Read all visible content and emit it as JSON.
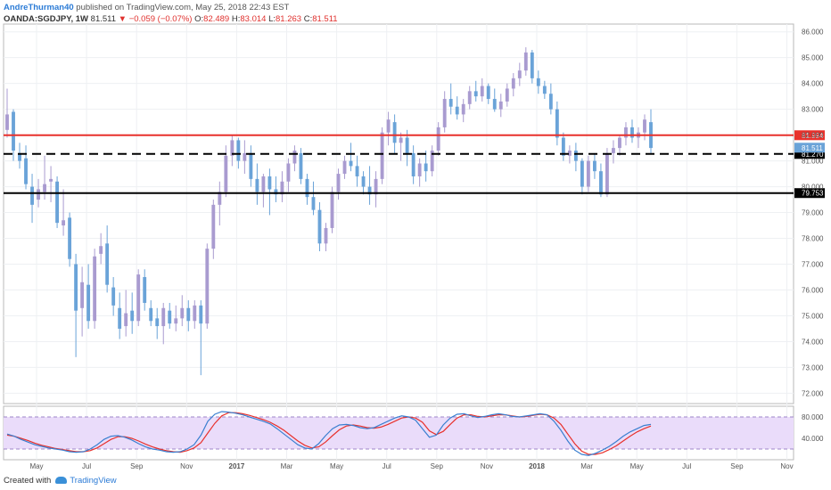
{
  "header": {
    "author": "AndreThurman40",
    "published_text": "published on TradingView.com, May 25, 2018 22:43 EST",
    "symbol": "OANDA:SGDJPY, 1W",
    "last": "81.511",
    "change": "−0.059 (−0.07%)",
    "open_label": "O:",
    "open": "82.489",
    "high_label": "H:",
    "high": "83.014",
    "low_label": "L:",
    "low": "81.263",
    "close_label": "C:",
    "close": "81.511"
  },
  "footer": {
    "created_with": "Created with",
    "brand": "TradingView"
  },
  "colors": {
    "up": "#a99bd0",
    "down": "#6aa3d8",
    "resistance": "#e8312c",
    "support": "#000000",
    "stoch_k": "#3a7fd0",
    "stoch_d": "#e8312c",
    "stoch_band": "#eadcfa"
  },
  "chart_data": {
    "type": "candlestick",
    "x_ticks": [
      "May",
      "Jul",
      "Sep",
      "Nov",
      "2017",
      "Mar",
      "May",
      "Jul",
      "Sep",
      "Nov",
      "2018",
      "Mar",
      "May",
      "Jul",
      "Sep",
      "Nov"
    ],
    "ylim": [
      71.6,
      86.3
    ],
    "y_ticks": [
      "86.000",
      "85.000",
      "84.000",
      "83.000",
      "82.000",
      "81.000",
      "80.000",
      "79.000",
      "78.000",
      "77.000",
      "76.000",
      "75.000",
      "74.000",
      "73.000",
      "72.000"
    ],
    "candles": [
      {
        "o": 82.2,
        "h": 83.8,
        "l": 81.9,
        "c": 82.8
      },
      {
        "o": 82.9,
        "h": 83.0,
        "l": 81.0,
        "c": 81.4
      },
      {
        "o": 81.3,
        "h": 81.7,
        "l": 80.7,
        "c": 81.0
      },
      {
        "o": 81.1,
        "h": 81.6,
        "l": 79.9,
        "c": 80.1
      },
      {
        "o": 80.0,
        "h": 80.5,
        "l": 78.6,
        "c": 79.3
      },
      {
        "o": 79.5,
        "h": 80.3,
        "l": 79.2,
        "c": 79.9
      },
      {
        "o": 79.8,
        "h": 81.2,
        "l": 79.5,
        "c": 80.1
      },
      {
        "o": 80.2,
        "h": 80.8,
        "l": 79.4,
        "c": 80.3
      },
      {
        "o": 80.2,
        "h": 80.4,
        "l": 78.4,
        "c": 78.6
      },
      {
        "o": 78.5,
        "h": 79.9,
        "l": 78.1,
        "c": 78.7
      },
      {
        "o": 78.8,
        "h": 79.0,
        "l": 76.9,
        "c": 77.2
      },
      {
        "o": 77.0,
        "h": 77.4,
        "l": 73.4,
        "c": 75.2
      },
      {
        "o": 75.3,
        "h": 76.9,
        "l": 74.2,
        "c": 76.3
      },
      {
        "o": 76.2,
        "h": 77.0,
        "l": 74.5,
        "c": 74.8
      },
      {
        "o": 74.8,
        "h": 77.6,
        "l": 74.5,
        "c": 77.3
      },
      {
        "o": 77.4,
        "h": 78.2,
        "l": 77.0,
        "c": 77.7
      },
      {
        "o": 77.8,
        "h": 78.5,
        "l": 75.9,
        "c": 76.2
      },
      {
        "o": 76.1,
        "h": 76.5,
        "l": 75.0,
        "c": 75.4
      },
      {
        "o": 75.3,
        "h": 75.9,
        "l": 74.1,
        "c": 74.5
      },
      {
        "o": 74.6,
        "h": 76.0,
        "l": 74.2,
        "c": 75.1
      },
      {
        "o": 75.2,
        "h": 75.9,
        "l": 74.3,
        "c": 74.8
      },
      {
        "o": 74.8,
        "h": 76.8,
        "l": 74.6,
        "c": 76.6
      },
      {
        "o": 76.5,
        "h": 76.8,
        "l": 75.2,
        "c": 75.5
      },
      {
        "o": 75.3,
        "h": 75.6,
        "l": 74.6,
        "c": 74.8
      },
      {
        "o": 74.9,
        "h": 75.3,
        "l": 74.1,
        "c": 74.6
      },
      {
        "o": 74.6,
        "h": 75.5,
        "l": 73.9,
        "c": 75.3
      },
      {
        "o": 75.2,
        "h": 75.5,
        "l": 74.5,
        "c": 74.7
      },
      {
        "o": 74.7,
        "h": 75.4,
        "l": 74.4,
        "c": 74.9
      },
      {
        "o": 74.9,
        "h": 75.8,
        "l": 74.6,
        "c": 75.3
      },
      {
        "o": 75.3,
        "h": 75.6,
        "l": 74.4,
        "c": 74.8
      },
      {
        "o": 74.8,
        "h": 75.6,
        "l": 74.5,
        "c": 75.4
      },
      {
        "o": 75.4,
        "h": 75.6,
        "l": 72.7,
        "c": 74.7
      },
      {
        "o": 74.7,
        "h": 77.8,
        "l": 74.5,
        "c": 77.6
      },
      {
        "o": 77.6,
        "h": 79.5,
        "l": 77.2,
        "c": 79.3
      },
      {
        "o": 79.3,
        "h": 80.2,
        "l": 78.5,
        "c": 79.8
      },
      {
        "o": 79.8,
        "h": 81.6,
        "l": 79.6,
        "c": 81.2
      },
      {
        "o": 81.2,
        "h": 82.0,
        "l": 80.8,
        "c": 81.8
      },
      {
        "o": 81.8,
        "h": 81.9,
        "l": 80.7,
        "c": 81.0
      },
      {
        "o": 81.0,
        "h": 81.8,
        "l": 80.5,
        "c": 81.3
      },
      {
        "o": 81.3,
        "h": 81.6,
        "l": 80.0,
        "c": 80.3
      },
      {
        "o": 80.3,
        "h": 80.9,
        "l": 79.3,
        "c": 79.8
      },
      {
        "o": 79.8,
        "h": 80.5,
        "l": 79.2,
        "c": 80.4
      },
      {
        "o": 80.4,
        "h": 80.7,
        "l": 78.9,
        "c": 79.9
      },
      {
        "o": 79.9,
        "h": 80.4,
        "l": 79.4,
        "c": 79.7
      },
      {
        "o": 79.7,
        "h": 80.6,
        "l": 79.4,
        "c": 80.2
      },
      {
        "o": 80.2,
        "h": 81.1,
        "l": 79.8,
        "c": 80.9
      },
      {
        "o": 80.9,
        "h": 81.6,
        "l": 80.6,
        "c": 81.4
      },
      {
        "o": 81.3,
        "h": 81.5,
        "l": 80.1,
        "c": 80.3
      },
      {
        "o": 80.3,
        "h": 80.5,
        "l": 79.3,
        "c": 79.6
      },
      {
        "o": 79.6,
        "h": 80.2,
        "l": 78.9,
        "c": 79.1
      },
      {
        "o": 79.1,
        "h": 79.4,
        "l": 77.5,
        "c": 77.8
      },
      {
        "o": 77.8,
        "h": 78.6,
        "l": 77.5,
        "c": 78.4
      },
      {
        "o": 78.4,
        "h": 80.0,
        "l": 78.2,
        "c": 79.8
      },
      {
        "o": 79.8,
        "h": 80.7,
        "l": 79.5,
        "c": 80.5
      },
      {
        "o": 80.5,
        "h": 81.2,
        "l": 80.3,
        "c": 81.0
      },
      {
        "o": 81.0,
        "h": 81.7,
        "l": 80.6,
        "c": 80.8
      },
      {
        "o": 80.8,
        "h": 81.2,
        "l": 80.0,
        "c": 80.4
      },
      {
        "o": 80.4,
        "h": 80.6,
        "l": 79.7,
        "c": 80.0
      },
      {
        "o": 80.0,
        "h": 80.8,
        "l": 79.3,
        "c": 79.7
      },
      {
        "o": 79.7,
        "h": 80.6,
        "l": 79.2,
        "c": 80.3
      },
      {
        "o": 80.3,
        "h": 82.3,
        "l": 80.1,
        "c": 82.1
      },
      {
        "o": 82.1,
        "h": 82.9,
        "l": 81.6,
        "c": 82.6
      },
      {
        "o": 82.5,
        "h": 82.8,
        "l": 81.3,
        "c": 81.7
      },
      {
        "o": 81.7,
        "h": 82.1,
        "l": 81.0,
        "c": 81.9
      },
      {
        "o": 81.9,
        "h": 82.2,
        "l": 80.8,
        "c": 81.3
      },
      {
        "o": 81.3,
        "h": 81.6,
        "l": 80.1,
        "c": 80.4
      },
      {
        "o": 80.4,
        "h": 81.1,
        "l": 80.0,
        "c": 80.9
      },
      {
        "o": 80.9,
        "h": 81.4,
        "l": 80.2,
        "c": 80.6
      },
      {
        "o": 80.6,
        "h": 81.6,
        "l": 80.4,
        "c": 81.4
      },
      {
        "o": 81.4,
        "h": 82.5,
        "l": 81.2,
        "c": 82.3
      },
      {
        "o": 82.3,
        "h": 83.7,
        "l": 82.1,
        "c": 83.4
      },
      {
        "o": 83.4,
        "h": 84.0,
        "l": 82.8,
        "c": 83.1
      },
      {
        "o": 83.1,
        "h": 83.5,
        "l": 82.6,
        "c": 82.8
      },
      {
        "o": 82.8,
        "h": 83.4,
        "l": 82.5,
        "c": 83.2
      },
      {
        "o": 83.2,
        "h": 83.9,
        "l": 83.0,
        "c": 83.7
      },
      {
        "o": 83.7,
        "h": 84.1,
        "l": 83.3,
        "c": 83.5
      },
      {
        "o": 83.5,
        "h": 84.2,
        "l": 83.3,
        "c": 83.9
      },
      {
        "o": 83.9,
        "h": 84.0,
        "l": 83.2,
        "c": 83.4
      },
      {
        "o": 83.4,
        "h": 83.8,
        "l": 82.9,
        "c": 83.0
      },
      {
        "o": 83.0,
        "h": 83.6,
        "l": 82.7,
        "c": 83.3
      },
      {
        "o": 83.3,
        "h": 84.0,
        "l": 83.1,
        "c": 83.8
      },
      {
        "o": 83.8,
        "h": 84.4,
        "l": 83.5,
        "c": 84.2
      },
      {
        "o": 84.2,
        "h": 84.8,
        "l": 83.9,
        "c": 84.5
      },
      {
        "o": 84.5,
        "h": 85.4,
        "l": 84.3,
        "c": 85.2
      },
      {
        "o": 85.2,
        "h": 85.3,
        "l": 84.0,
        "c": 84.2
      },
      {
        "o": 84.2,
        "h": 84.5,
        "l": 83.6,
        "c": 83.9
      },
      {
        "o": 83.9,
        "h": 84.1,
        "l": 83.4,
        "c": 83.6
      },
      {
        "o": 83.6,
        "h": 84.0,
        "l": 82.8,
        "c": 83.0
      },
      {
        "o": 83.0,
        "h": 83.3,
        "l": 81.6,
        "c": 81.9
      },
      {
        "o": 81.9,
        "h": 82.1,
        "l": 81.0,
        "c": 81.2
      },
      {
        "o": 81.2,
        "h": 81.6,
        "l": 80.9,
        "c": 81.4
      },
      {
        "o": 81.4,
        "h": 81.7,
        "l": 80.6,
        "c": 81.0
      },
      {
        "o": 81.0,
        "h": 81.1,
        "l": 79.7,
        "c": 80.0
      },
      {
        "o": 80.0,
        "h": 81.2,
        "l": 79.8,
        "c": 81.0
      },
      {
        "o": 81.0,
        "h": 81.3,
        "l": 80.3,
        "c": 80.6
      },
      {
        "o": 80.6,
        "h": 80.9,
        "l": 79.6,
        "c": 79.7
      },
      {
        "o": 79.7,
        "h": 81.5,
        "l": 79.6,
        "c": 81.3
      },
      {
        "o": 81.3,
        "h": 81.8,
        "l": 80.9,
        "c": 81.5
      },
      {
        "o": 81.5,
        "h": 82.0,
        "l": 81.2,
        "c": 81.9
      },
      {
        "o": 81.9,
        "h": 82.5,
        "l": 81.6,
        "c": 82.3
      },
      {
        "o": 82.3,
        "h": 82.6,
        "l": 81.7,
        "c": 81.9
      },
      {
        "o": 81.9,
        "h": 82.3,
        "l": 81.5,
        "c": 82.1
      },
      {
        "o": 82.1,
        "h": 82.8,
        "l": 81.8,
        "c": 82.6
      },
      {
        "o": 82.5,
        "h": 83.0,
        "l": 81.3,
        "c": 81.5
      }
    ],
    "hlines": [
      {
        "value": 81.994,
        "label": "81.994",
        "style": "solid",
        "color": "#e8312c"
      },
      {
        "value": 81.27,
        "label": "81.270",
        "style": "dashed",
        "color": "#000000"
      },
      {
        "value": 79.753,
        "label": "79.753",
        "style": "solid",
        "color": "#000000"
      }
    ],
    "last_price_label": "81.511",
    "stochastic": {
      "ylim": [
        0,
        100
      ],
      "upper_band": 80,
      "lower_band": 20,
      "y_ticks": [
        "80.000",
        "40.000"
      ],
      "k": [
        48,
        44,
        38,
        33,
        28,
        25,
        22,
        20,
        18,
        15,
        14,
        15,
        20,
        28,
        38,
        44,
        45,
        42,
        37,
        30,
        24,
        20,
        18,
        15,
        14,
        15,
        20,
        28,
        46,
        72,
        85,
        90,
        89,
        87,
        84,
        80,
        76,
        72,
        67,
        58,
        48,
        38,
        28,
        22,
        20,
        30,
        45,
        58,
        65,
        66,
        64,
        60,
        58,
        60,
        66,
        72,
        78,
        82,
        80,
        74,
        58,
        42,
        46,
        65,
        78,
        85,
        86,
        82,
        79,
        81,
        84,
        86,
        84,
        81,
        80,
        82,
        84,
        86,
        84,
        72,
        55,
        35,
        18,
        10,
        8,
        12,
        18,
        25,
        34,
        44,
        52,
        58,
        64,
        66
      ],
      "d": [
        46,
        44,
        40,
        36,
        31,
        27,
        24,
        21,
        19,
        17,
        15,
        15,
        17,
        22,
        30,
        38,
        43,
        43,
        40,
        35,
        29,
        24,
        20,
        17,
        15,
        14,
        17,
        22,
        32,
        50,
        68,
        82,
        88,
        88,
        86,
        83,
        79,
        75,
        70,
        63,
        55,
        45,
        35,
        27,
        22,
        24,
        33,
        45,
        56,
        63,
        65,
        63,
        60,
        59,
        61,
        66,
        72,
        78,
        80,
        78,
        70,
        54,
        47,
        53,
        66,
        78,
        84,
        84,
        81,
        80,
        82,
        84,
        84,
        82,
        80,
        81,
        83,
        85,
        84,
        78,
        66,
        48,
        30,
        16,
        10,
        10,
        13,
        19,
        26,
        35,
        44,
        52,
        58,
        63
      ]
    }
  }
}
